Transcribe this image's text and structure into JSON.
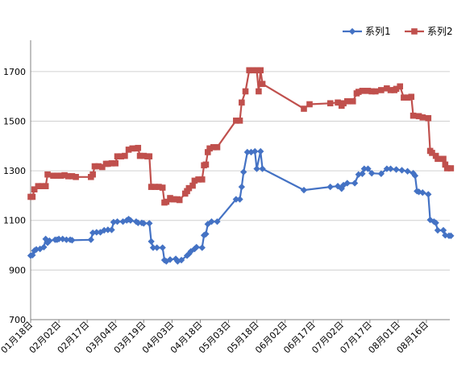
{
  "chart_data": {
    "type": "line",
    "title": "",
    "xlabel": "",
    "ylabel": "",
    "ylim": [
      700,
      1800
    ],
    "yticks": [
      700,
      900,
      1100,
      1300,
      1500,
      1700
    ],
    "grid": {
      "y": true,
      "x": false
    },
    "legend_position": "top-right",
    "x_tick_labels": [
      "01月18日",
      "02月02日",
      "02月17日",
      "03月04日",
      "03月19日",
      "04月03日",
      "04月18日",
      "05月03日",
      "05月18日",
      "06月02日",
      "06月17日",
      "07月02日",
      "07月17日",
      "08月01日",
      "08月16日"
    ],
    "x_tick_days": [
      0,
      15,
      30,
      45,
      60,
      75,
      90,
      105,
      120,
      135,
      150,
      165,
      180,
      195,
      210
    ],
    "x_range_days": [
      0,
      219
    ],
    "series": [
      {
        "name": "系列1",
        "color": "#4472c4",
        "marker": "diamond",
        "points": [
          [
            0,
            958
          ],
          [
            1,
            960
          ],
          [
            2,
            978
          ],
          [
            3,
            983
          ],
          [
            5,
            985
          ],
          [
            7,
            992
          ],
          [
            8,
            1025
          ],
          [
            9,
            1010
          ],
          [
            10,
            1018
          ],
          [
            13,
            1022
          ],
          [
            14,
            1022
          ],
          [
            15,
            1025
          ],
          [
            17,
            1025
          ],
          [
            19,
            1022
          ],
          [
            21,
            1022
          ],
          [
            22,
            1020
          ],
          [
            32,
            1022
          ],
          [
            33,
            1050
          ],
          [
            35,
            1052
          ],
          [
            37,
            1052
          ],
          [
            39,
            1060
          ],
          [
            41,
            1062
          ],
          [
            43,
            1062
          ],
          [
            44,
            1093
          ],
          [
            46,
            1095
          ],
          [
            49,
            1095
          ],
          [
            51,
            1100
          ],
          [
            52,
            1105
          ],
          [
            53,
            1100
          ],
          [
            56,
            1095
          ],
          [
            57,
            1090
          ],
          [
            59,
            1090
          ],
          [
            60,
            1088
          ],
          [
            63,
            1088
          ],
          [
            64,
            1015
          ],
          [
            65,
            990
          ],
          [
            67,
            990
          ],
          [
            70,
            990
          ],
          [
            71,
            940
          ],
          [
            72,
            935
          ],
          [
            74,
            942
          ],
          [
            77,
            945
          ],
          [
            78,
            935
          ],
          [
            80,
            940
          ],
          [
            83,
            958
          ],
          [
            84,
            965
          ],
          [
            85,
            975
          ],
          [
            87,
            985
          ],
          [
            88,
            992
          ],
          [
            91,
            990
          ],
          [
            92,
            1040
          ],
          [
            93,
            1045
          ],
          [
            94,
            1085
          ],
          [
            96,
            1095
          ],
          [
            99,
            1095
          ],
          [
            109,
            1185
          ],
          [
            111,
            1185
          ],
          [
            112,
            1235
          ],
          [
            113,
            1295
          ],
          [
            115,
            1375
          ],
          [
            117,
            1375
          ],
          [
            119,
            1378
          ],
          [
            120,
            1308
          ],
          [
            122,
            1378
          ],
          [
            123,
            1308
          ],
          [
            145,
            1222
          ],
          [
            159,
            1235
          ],
          [
            163,
            1238
          ],
          [
            165,
            1228
          ],
          [
            166,
            1242
          ],
          [
            168,
            1250
          ],
          [
            172,
            1250
          ],
          [
            174,
            1285
          ],
          [
            176,
            1288
          ],
          [
            177,
            1308
          ],
          [
            179,
            1308
          ],
          [
            181,
            1290
          ],
          [
            186,
            1288
          ],
          [
            189,
            1308
          ],
          [
            191,
            1308
          ],
          [
            194,
            1305
          ],
          [
            197,
            1302
          ],
          [
            200,
            1298
          ],
          [
            203,
            1290
          ],
          [
            204,
            1280
          ],
          [
            205,
            1218
          ],
          [
            206,
            1215
          ],
          [
            208,
            1212
          ],
          [
            211,
            1205
          ],
          [
            212,
            1102
          ],
          [
            214,
            1095
          ],
          [
            215,
            1090
          ],
          [
            216,
            1060
          ],
          [
            219,
            1060
          ],
          [
            220,
            1040
          ],
          [
            222,
            1038
          ],
          [
            223,
            1038
          ]
        ]
      },
      {
        "name": "系列2",
        "color": "#c0504d",
        "marker": "square",
        "points": [
          [
            0,
            1195
          ],
          [
            1,
            1195
          ],
          [
            2,
            1225
          ],
          [
            4,
            1238
          ],
          [
            6,
            1238
          ],
          [
            8,
            1238
          ],
          [
            9,
            1285
          ],
          [
            12,
            1280
          ],
          [
            14,
            1280
          ],
          [
            16,
            1280
          ],
          [
            18,
            1282
          ],
          [
            20,
            1278
          ],
          [
            22,
            1278
          ],
          [
            24,
            1275
          ],
          [
            32,
            1275
          ],
          [
            33,
            1285
          ],
          [
            34,
            1318
          ],
          [
            36,
            1318
          ],
          [
            38,
            1315
          ],
          [
            40,
            1328
          ],
          [
            41,
            1328
          ],
          [
            43,
            1330
          ],
          [
            45,
            1330
          ],
          [
            46,
            1358
          ],
          [
            48,
            1358
          ],
          [
            50,
            1360
          ],
          [
            52,
            1385
          ],
          [
            54,
            1390
          ],
          [
            56,
            1390
          ],
          [
            57,
            1392
          ],
          [
            58,
            1360
          ],
          [
            60,
            1360
          ],
          [
            62,
            1358
          ],
          [
            63,
            1358
          ],
          [
            64,
            1235
          ],
          [
            66,
            1235
          ],
          [
            68,
            1235
          ],
          [
            70,
            1232
          ],
          [
            71,
            1172
          ],
          [
            72,
            1175
          ],
          [
            74,
            1190
          ],
          [
            75,
            1185
          ],
          [
            76,
            1185
          ],
          [
            78,
            1185
          ],
          [
            79,
            1182
          ],
          [
            82,
            1208
          ],
          [
            83,
            1218
          ],
          [
            84,
            1230
          ],
          [
            86,
            1240
          ],
          [
            87,
            1260
          ],
          [
            89,
            1265
          ],
          [
            91,
            1265
          ],
          [
            92,
            1322
          ],
          [
            93,
            1325
          ],
          [
            94,
            1375
          ],
          [
            95,
            1390
          ],
          [
            97,
            1395
          ],
          [
            99,
            1395
          ],
          [
            109,
            1502
          ],
          [
            111,
            1502
          ],
          [
            112,
            1575
          ],
          [
            114,
            1620
          ],
          [
            116,
            1705
          ],
          [
            118,
            1705
          ],
          [
            120,
            1705
          ],
          [
            121,
            1620
          ],
          [
            122,
            1705
          ],
          [
            123,
            1650
          ],
          [
            145,
            1550
          ],
          [
            148,
            1568
          ],
          [
            159,
            1572
          ],
          [
            163,
            1575
          ],
          [
            165,
            1562
          ],
          [
            166,
            1572
          ],
          [
            168,
            1580
          ],
          [
            171,
            1580
          ],
          [
            173,
            1612
          ],
          [
            174,
            1618
          ],
          [
            176,
            1622
          ],
          [
            179,
            1622
          ],
          [
            181,
            1620
          ],
          [
            183,
            1620
          ],
          [
            186,
            1625
          ],
          [
            189,
            1632
          ],
          [
            191,
            1625
          ],
          [
            193,
            1625
          ],
          [
            194,
            1630
          ],
          [
            196,
            1640
          ],
          [
            198,
            1595
          ],
          [
            200,
            1595
          ],
          [
            202,
            1598
          ],
          [
            203,
            1522
          ],
          [
            206,
            1520
          ],
          [
            208,
            1515
          ],
          [
            211,
            1512
          ],
          [
            212,
            1380
          ],
          [
            213,
            1372
          ],
          [
            215,
            1360
          ],
          [
            216,
            1348
          ],
          [
            219,
            1348
          ],
          [
            220,
            1325
          ],
          [
            221,
            1310
          ],
          [
            223,
            1310
          ]
        ]
      }
    ]
  }
}
